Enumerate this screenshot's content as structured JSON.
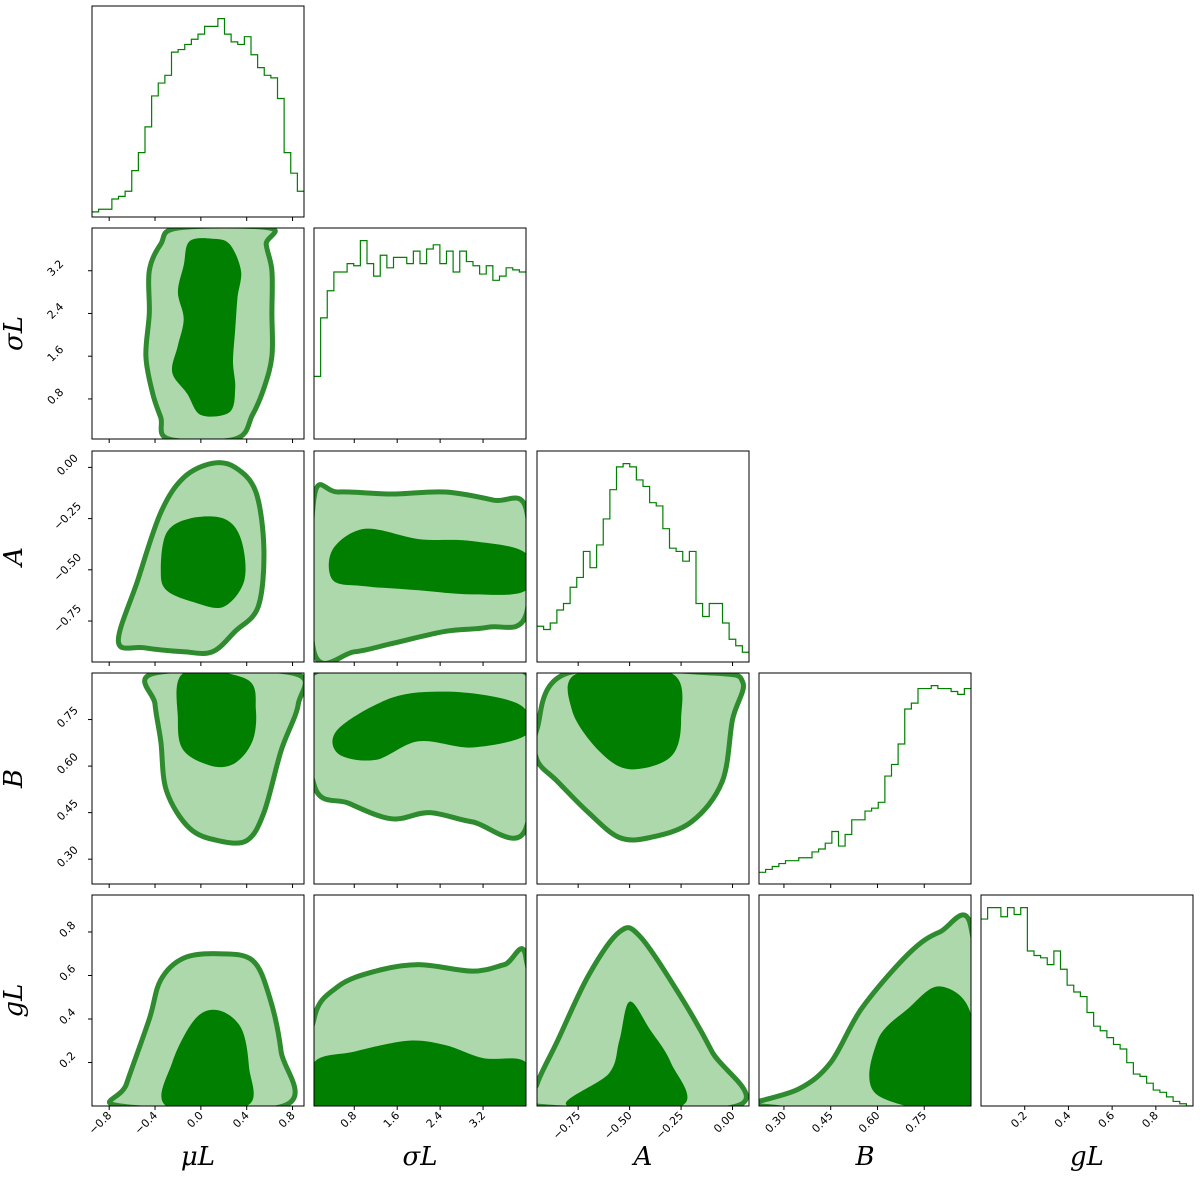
{
  "chart_data": {
    "type": "corner",
    "colors": {
      "line": "#008000",
      "inner_fill": "#007f00",
      "outer_fill": "#acd8ac",
      "outer_edge": "#2e8b2e"
    },
    "parameters": [
      {
        "id": "muL",
        "label": "μL",
        "range": [
          -0.95,
          0.9
        ],
        "ticks": [
          -0.8,
          -0.4,
          0.0,
          0.4,
          0.8
        ],
        "tick_labels": [
          "−0.8",
          "−0.4",
          "0.0",
          "0.4",
          "0.8"
        ]
      },
      {
        "id": "sigmaL",
        "label": "σL",
        "range": [
          0.05,
          4.0
        ],
        "ticks": [
          0.8,
          1.6,
          2.4,
          3.2
        ],
        "tick_labels": [
          "0.8",
          "1.6",
          "2.4",
          "3.2"
        ]
      },
      {
        "id": "A",
        "label": "A",
        "range": [
          -0.95,
          0.08
        ],
        "ticks": [
          -0.75,
          -0.5,
          -0.25,
          0.0
        ],
        "tick_labels": [
          "−0.75",
          "−0.50",
          "−0.25",
          "0.00"
        ]
      },
      {
        "id": "B",
        "label": "B",
        "range": [
          0.22,
          0.9
        ],
        "ticks": [
          0.3,
          0.45,
          0.6,
          0.75
        ],
        "tick_labels": [
          "0.30",
          "0.45",
          "0.60",
          "0.75"
        ]
      },
      {
        "id": "gL",
        "label": "gL",
        "range": [
          0.0,
          0.97
        ],
        "ticks": [
          0.2,
          0.4,
          0.6,
          0.8
        ],
        "tick_labels": [
          "0.2",
          "0.4",
          "0.6",
          "0.8"
        ]
      }
    ],
    "histograms": [
      {
        "param": "muL",
        "counts": [
          2,
          3,
          3,
          7,
          8,
          10,
          18,
          25,
          35,
          47,
          52,
          55,
          64,
          65,
          67,
          69,
          71,
          74,
          74,
          77,
          71,
          68,
          67,
          70,
          63,
          58,
          55,
          54,
          46,
          25,
          17,
          10
        ]
      },
      {
        "param": "sigmaL",
        "counts": [
          30,
          58,
          71,
          80,
          80,
          84,
          83,
          95,
          84,
          78,
          88,
          82,
          87,
          87,
          84,
          90,
          84,
          91,
          93,
          84,
          90,
          80,
          90,
          85,
          83,
          79,
          83,
          76,
          78,
          82,
          81,
          80
        ]
      },
      {
        "param": "A",
        "counts": [
          11,
          10,
          12,
          16,
          18,
          23,
          26,
          34,
          29,
          36,
          44,
          53,
          60,
          61,
          60,
          56,
          54,
          49,
          48,
          41,
          35,
          34,
          31,
          34,
          18,
          14,
          18,
          18,
          12,
          7,
          5,
          3
        ]
      },
      {
        "param": "B",
        "counts": [
          4,
          5,
          6,
          7,
          8,
          8,
          9,
          9,
          11,
          12,
          14,
          18,
          13,
          17,
          22,
          22,
          25,
          26,
          28,
          37,
          41,
          48,
          60,
          62,
          67,
          67,
          68,
          67,
          67,
          66,
          65,
          67
        ]
      },
      {
        "param": "gL",
        "counts": [
          82,
          87,
          87,
          83,
          87,
          84,
          87,
          68,
          66,
          65,
          62,
          68,
          60,
          53,
          50,
          48,
          41,
          35,
          33,
          30,
          27,
          25,
          19,
          14,
          13,
          10,
          7,
          6,
          4,
          2,
          1,
          0
        ]
      }
    ],
    "contours": [
      {
        "x": "muL",
        "y": "sigmaL",
        "outer": [
          [
            -0.2,
            4.0
          ],
          [
            -0.35,
            3.7
          ],
          [
            -0.45,
            3.2
          ],
          [
            -0.45,
            2.4
          ],
          [
            -0.48,
            1.6
          ],
          [
            -0.42,
            0.9
          ],
          [
            -0.35,
            0.45
          ],
          [
            -0.28,
            0.05
          ],
          [
            0.3,
            0.05
          ],
          [
            0.45,
            0.5
          ],
          [
            0.55,
            1.0
          ],
          [
            0.62,
            1.6
          ],
          [
            0.62,
            2.4
          ],
          [
            0.62,
            3.2
          ],
          [
            0.57,
            3.7
          ],
          [
            0.6,
            4.0
          ]
        ],
        "inner": [
          [
            -0.1,
            3.75
          ],
          [
            -0.15,
            3.3
          ],
          [
            -0.2,
            2.8
          ],
          [
            -0.15,
            2.3
          ],
          [
            -0.2,
            1.8
          ],
          [
            -0.25,
            1.3
          ],
          [
            -0.12,
            0.9
          ],
          [
            0.0,
            0.5
          ],
          [
            0.25,
            0.55
          ],
          [
            0.3,
            1.0
          ],
          [
            0.28,
            1.5
          ],
          [
            0.3,
            2.1
          ],
          [
            0.32,
            2.7
          ],
          [
            0.35,
            3.2
          ],
          [
            0.25,
            3.7
          ],
          [
            0.1,
            3.8
          ]
        ]
      },
      {
        "x": "muL",
        "y": "A",
        "outer": [
          [
            -0.72,
            -0.85
          ],
          [
            -0.55,
            -0.55
          ],
          [
            -0.35,
            -0.22
          ],
          [
            -0.15,
            -0.05
          ],
          [
            0.1,
            0.02
          ],
          [
            0.3,
            0.0
          ],
          [
            0.48,
            -0.12
          ],
          [
            0.55,
            -0.4
          ],
          [
            0.5,
            -0.68
          ],
          [
            0.3,
            -0.8
          ],
          [
            0.1,
            -0.9
          ],
          [
            -0.15,
            -0.9
          ],
          [
            -0.5,
            -0.88
          ]
        ],
        "inner": [
          [
            -0.35,
            -0.5
          ],
          [
            -0.3,
            -0.32
          ],
          [
            -0.1,
            -0.25
          ],
          [
            0.2,
            -0.25
          ],
          [
            0.35,
            -0.35
          ],
          [
            0.38,
            -0.55
          ],
          [
            0.2,
            -0.68
          ],
          [
            -0.05,
            -0.66
          ],
          [
            -0.3,
            -0.6
          ]
        ]
      },
      {
        "x": "sigmaL",
        "y": "A",
        "outer": [
          [
            0.05,
            -0.15
          ],
          [
            0.5,
            -0.12
          ],
          [
            1.5,
            -0.13
          ],
          [
            2.5,
            -0.12
          ],
          [
            3.4,
            -0.16
          ],
          [
            4.0,
            -0.2
          ],
          [
            4.0,
            -0.72
          ],
          [
            3.3,
            -0.78
          ],
          [
            2.5,
            -0.8
          ],
          [
            1.5,
            -0.86
          ],
          [
            0.8,
            -0.9
          ],
          [
            0.05,
            -0.9
          ]
        ],
        "inner": [
          [
            0.4,
            -0.4
          ],
          [
            1.0,
            -0.3
          ],
          [
            2.0,
            -0.35
          ],
          [
            3.0,
            -0.36
          ],
          [
            4.0,
            -0.42
          ],
          [
            4.0,
            -0.6
          ],
          [
            3.0,
            -0.62
          ],
          [
            2.0,
            -0.6
          ],
          [
            1.0,
            -0.58
          ],
          [
            0.4,
            -0.55
          ]
        ]
      },
      {
        "x": "A",
        "y": "B",
        "outer": [
          [
            -0.95,
            0.72
          ],
          [
            -0.8,
            0.9
          ],
          [
            -0.1,
            0.9
          ],
          [
            0.05,
            0.87
          ],
          [
            0.0,
            0.75
          ],
          [
            -0.05,
            0.55
          ],
          [
            -0.2,
            0.42
          ],
          [
            -0.4,
            0.37
          ],
          [
            -0.55,
            0.37
          ],
          [
            -0.7,
            0.45
          ],
          [
            -0.85,
            0.55
          ],
          [
            -0.95,
            0.62
          ]
        ],
        "inner": [
          [
            -0.75,
            0.9
          ],
          [
            -0.3,
            0.9
          ],
          [
            -0.25,
            0.75
          ],
          [
            -0.3,
            0.63
          ],
          [
            -0.5,
            0.59
          ],
          [
            -0.65,
            0.65
          ],
          [
            -0.78,
            0.78
          ]
        ]
      },
      {
        "x": "sigmaL",
        "y": "B",
        "outer": [
          [
            0.05,
            0.9
          ],
          [
            4.0,
            0.9
          ],
          [
            4.0,
            0.4
          ],
          [
            3.0,
            0.42
          ],
          [
            2.2,
            0.45
          ],
          [
            1.5,
            0.43
          ],
          [
            0.7,
            0.48
          ],
          [
            0.05,
            0.54
          ]
        ],
        "inner": [
          [
            0.5,
            0.72
          ],
          [
            1.5,
            0.82
          ],
          [
            2.5,
            0.84
          ],
          [
            3.5,
            0.82
          ],
          [
            4.0,
            0.78
          ],
          [
            4.0,
            0.7
          ],
          [
            3.0,
            0.66
          ],
          [
            2.0,
            0.68
          ],
          [
            1.2,
            0.62
          ],
          [
            0.5,
            0.64
          ]
        ]
      },
      {
        "x": "muL",
        "y": "B",
        "outer": [
          [
            -0.4,
            0.9
          ],
          [
            0.8,
            0.9
          ],
          [
            0.85,
            0.8
          ],
          [
            0.7,
            0.65
          ],
          [
            0.55,
            0.45
          ],
          [
            0.4,
            0.36
          ],
          [
            0.15,
            0.36
          ],
          [
            -0.1,
            0.4
          ],
          [
            -0.3,
            0.52
          ],
          [
            -0.35,
            0.68
          ],
          [
            -0.4,
            0.8
          ]
        ],
        "inner": [
          [
            -0.15,
            0.9
          ],
          [
            0.4,
            0.88
          ],
          [
            0.48,
            0.78
          ],
          [
            0.45,
            0.68
          ],
          [
            0.3,
            0.61
          ],
          [
            0.1,
            0.6
          ],
          [
            -0.15,
            0.65
          ],
          [
            -0.2,
            0.75
          ]
        ]
      },
      {
        "x": "muL",
        "y": "gL",
        "outer": [
          [
            -0.7,
            0.0
          ],
          [
            -0.65,
            0.1
          ],
          [
            -0.45,
            0.4
          ],
          [
            -0.35,
            0.58
          ],
          [
            -0.15,
            0.68
          ],
          [
            0.15,
            0.7
          ],
          [
            0.45,
            0.67
          ],
          [
            0.6,
            0.5
          ],
          [
            0.7,
            0.25
          ],
          [
            0.72,
            0.0
          ]
        ],
        "inner": [
          [
            -0.3,
            0.0
          ],
          [
            -0.25,
            0.2
          ],
          [
            -0.05,
            0.4
          ],
          [
            0.15,
            0.44
          ],
          [
            0.35,
            0.36
          ],
          [
            0.42,
            0.18
          ],
          [
            0.4,
            0.0
          ]
        ]
      },
      {
        "x": "sigmaL",
        "y": "gL",
        "outer": [
          [
            0.05,
            0.0
          ],
          [
            0.05,
            0.4
          ],
          [
            0.5,
            0.55
          ],
          [
            1.2,
            0.62
          ],
          [
            2.0,
            0.65
          ],
          [
            3.0,
            0.62
          ],
          [
            3.6,
            0.65
          ],
          [
            4.0,
            0.68
          ],
          [
            4.0,
            0.0
          ]
        ],
        "inner": [
          [
            0.05,
            0.0
          ],
          [
            0.05,
            0.2
          ],
          [
            0.8,
            0.25
          ],
          [
            1.8,
            0.3
          ],
          [
            2.5,
            0.28
          ],
          [
            3.2,
            0.22
          ],
          [
            4.0,
            0.2
          ],
          [
            4.0,
            0.0
          ]
        ]
      },
      {
        "x": "A",
        "y": "gL",
        "outer": [
          [
            -0.95,
            0.1
          ],
          [
            -0.85,
            0.3
          ],
          [
            -0.7,
            0.6
          ],
          [
            -0.55,
            0.8
          ],
          [
            -0.45,
            0.78
          ],
          [
            -0.25,
            0.5
          ],
          [
            -0.1,
            0.25
          ],
          [
            0.02,
            0.0
          ],
          [
            -0.95,
            0.0
          ]
        ],
        "inner": [
          [
            -0.8,
            0.0
          ],
          [
            -0.6,
            0.15
          ],
          [
            -0.55,
            0.3
          ],
          [
            -0.5,
            0.48
          ],
          [
            -0.4,
            0.35
          ],
          [
            -0.3,
            0.2
          ],
          [
            -0.25,
            0.0
          ]
        ]
      },
      {
        "x": "B",
        "y": "gL",
        "outer": [
          [
            0.22,
            0.02
          ],
          [
            0.35,
            0.08
          ],
          [
            0.45,
            0.2
          ],
          [
            0.55,
            0.45
          ],
          [
            0.7,
            0.7
          ],
          [
            0.8,
            0.8
          ],
          [
            0.9,
            0.82
          ],
          [
            0.9,
            0.0
          ],
          [
            0.22,
            0.0
          ]
        ],
        "inner": [
          [
            0.6,
            0.05
          ],
          [
            0.6,
            0.3
          ],
          [
            0.7,
            0.45
          ],
          [
            0.8,
            0.55
          ],
          [
            0.9,
            0.42
          ],
          [
            0.9,
            0.0
          ]
        ]
      }
    ]
  }
}
